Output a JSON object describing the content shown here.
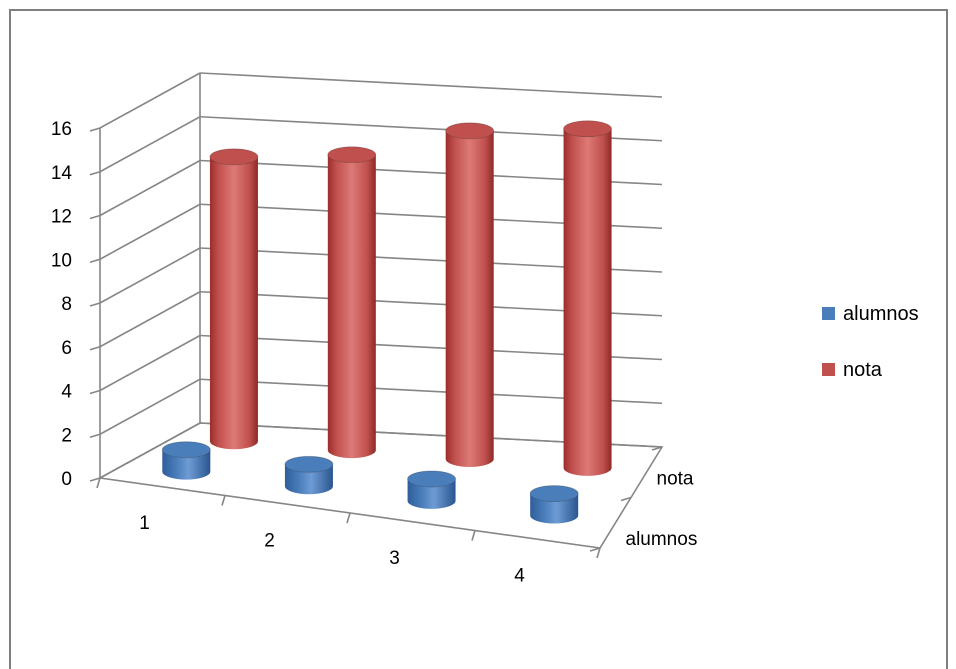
{
  "chart_data": {
    "type": "bar",
    "variant": "3d-cylinder",
    "categories": [
      "1",
      "2",
      "3",
      "4"
    ],
    "series": [
      {
        "name": "alumnos",
        "values": [
          1,
          1,
          1,
          1
        ],
        "color": "#4a7ebb"
      },
      {
        "name": "nota",
        "values": [
          13,
          13.5,
          15,
          15.5
        ],
        "color": "#c0504d"
      }
    ],
    "depth_labels": [
      "nota",
      "alumnos"
    ],
    "ylim": [
      0,
      16
    ],
    "yticks": [
      "0",
      "2",
      "4",
      "6",
      "8",
      "10",
      "12",
      "14",
      "16"
    ],
    "grid": true,
    "legend_position": "right"
  }
}
